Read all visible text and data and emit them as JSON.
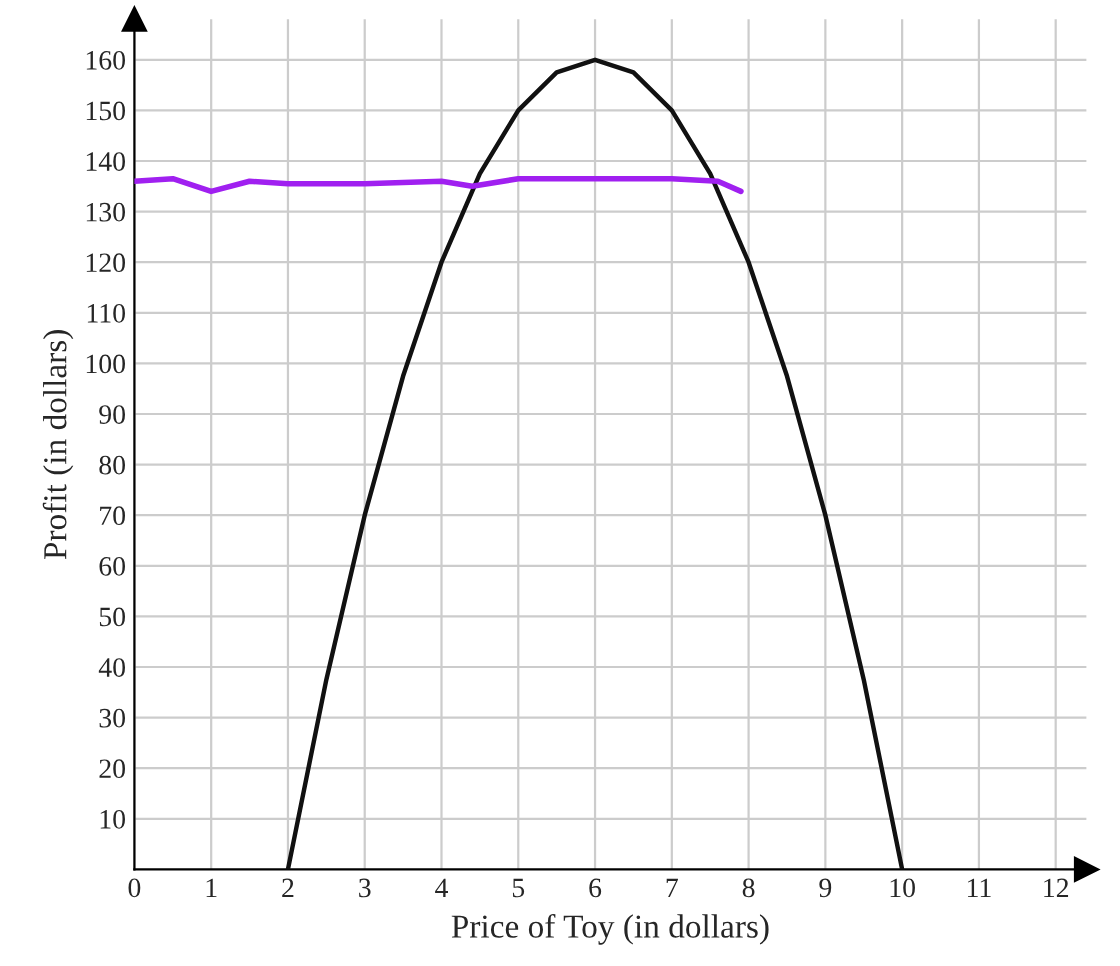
{
  "chart_data": {
    "type": "line",
    "xlabel": "Price of Toy (in dollars)",
    "ylabel": "Profit (in dollars)",
    "xlim": [
      0,
      12.4
    ],
    "ylim": [
      0,
      168
    ],
    "xticks": [
      0,
      1,
      2,
      3,
      4,
      5,
      6,
      7,
      8,
      9,
      10,
      11,
      12
    ],
    "yticks": [
      10,
      20,
      30,
      40,
      50,
      60,
      70,
      80,
      90,
      100,
      110,
      120,
      130,
      140,
      150,
      160
    ],
    "grid": true,
    "marker": "none",
    "line_style": "solid",
    "series": [
      {
        "color": "#111111",
        "x": [
          2,
          2.5,
          3,
          3.5,
          4,
          4.5,
          5,
          5.5,
          6,
          6.5,
          7,
          7.5,
          8,
          8.5,
          9,
          9.5,
          10
        ],
        "values": [
          0,
          37.5,
          70,
          97.5,
          120,
          137.5,
          150,
          157.5,
          160,
          157.5,
          150,
          137.5,
          120,
          97.5,
          70,
          37.5,
          0
        ]
      },
      {
        "color": "#a020f0",
        "x": [
          0,
          0.5,
          1,
          1.5,
          2,
          3,
          4,
          4.4,
          5,
          6,
          7,
          7.6,
          7.9
        ],
        "values": [
          136,
          136.5,
          134,
          136,
          135.5,
          135.5,
          136,
          135,
          136.5,
          136.5,
          136.5,
          136,
          134
        ]
      }
    ]
  }
}
